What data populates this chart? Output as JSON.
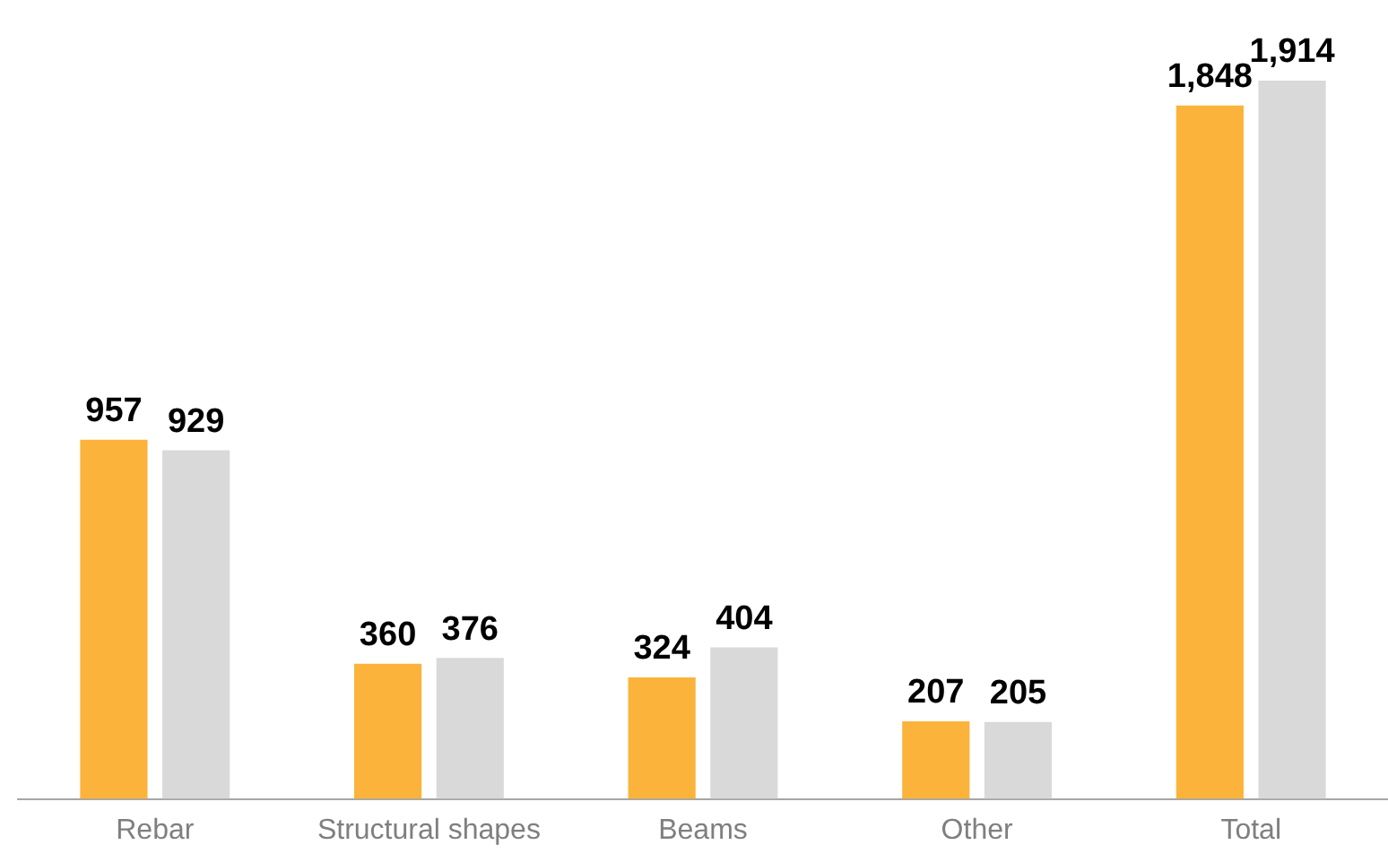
{
  "chart_data": {
    "type": "bar",
    "categories": [
      "Rebar",
      "Structural shapes",
      "Beams",
      "Other",
      "Total"
    ],
    "series": [
      {
        "color": "#fbb33b",
        "values": [
          957,
          360,
          324,
          207,
          1848
        ],
        "value_labels": [
          "957",
          "360",
          "324",
          "207",
          "1,848"
        ]
      },
      {
        "color": "#d9d9d9",
        "values": [
          929,
          376,
          404,
          205,
          1914
        ],
        "value_labels": [
          "929",
          "376",
          "404",
          "205",
          "1,914"
        ]
      }
    ],
    "grid": false,
    "legend": false,
    "tick_labels": "x"
  }
}
